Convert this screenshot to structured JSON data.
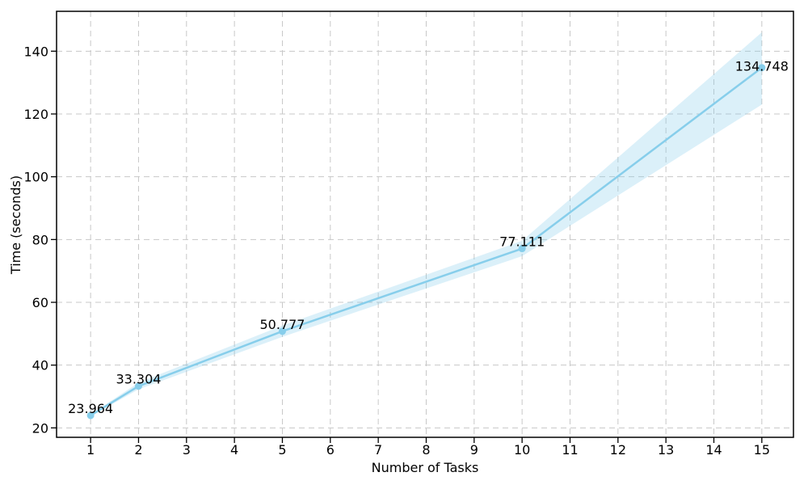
{
  "chart_data": {
    "type": "line",
    "title": "",
    "xlabel": "Number of Tasks",
    "ylabel": "Time (seconds)",
    "x": [
      1,
      2,
      5,
      10,
      15
    ],
    "y": [
      23.964,
      33.304,
      50.777,
      77.111,
      134.748
    ],
    "point_labels": [
      "23.964",
      "33.304",
      "50.777",
      "77.111",
      "134.748"
    ],
    "band_lower": [
      23.7,
      32.3,
      49.0,
      74.7,
      123.0
    ],
    "band_upper": [
      24.3,
      34.4,
      52.6,
      79.6,
      146.0
    ],
    "xticks": [
      1,
      2,
      3,
      4,
      5,
      6,
      7,
      8,
      9,
      10,
      11,
      12,
      13,
      14,
      15
    ],
    "yticks": [
      20,
      40,
      60,
      80,
      100,
      120,
      140
    ],
    "xlim": [
      0.29,
      15.66
    ],
    "ylim": [
      17.0,
      152.7
    ],
    "grid": true,
    "legend": null,
    "line_color": "#87CEEB",
    "marker_color": "#87CEEB",
    "band_color": "rgba(135, 206, 235, 0.30)",
    "grid_color": "#c8c8c8",
    "axis_color": "#000000",
    "text_color": "#000000",
    "background": "#ffffff",
    "label_dy": [
      -3,
      -3,
      -3,
      -3,
      4
    ]
  }
}
